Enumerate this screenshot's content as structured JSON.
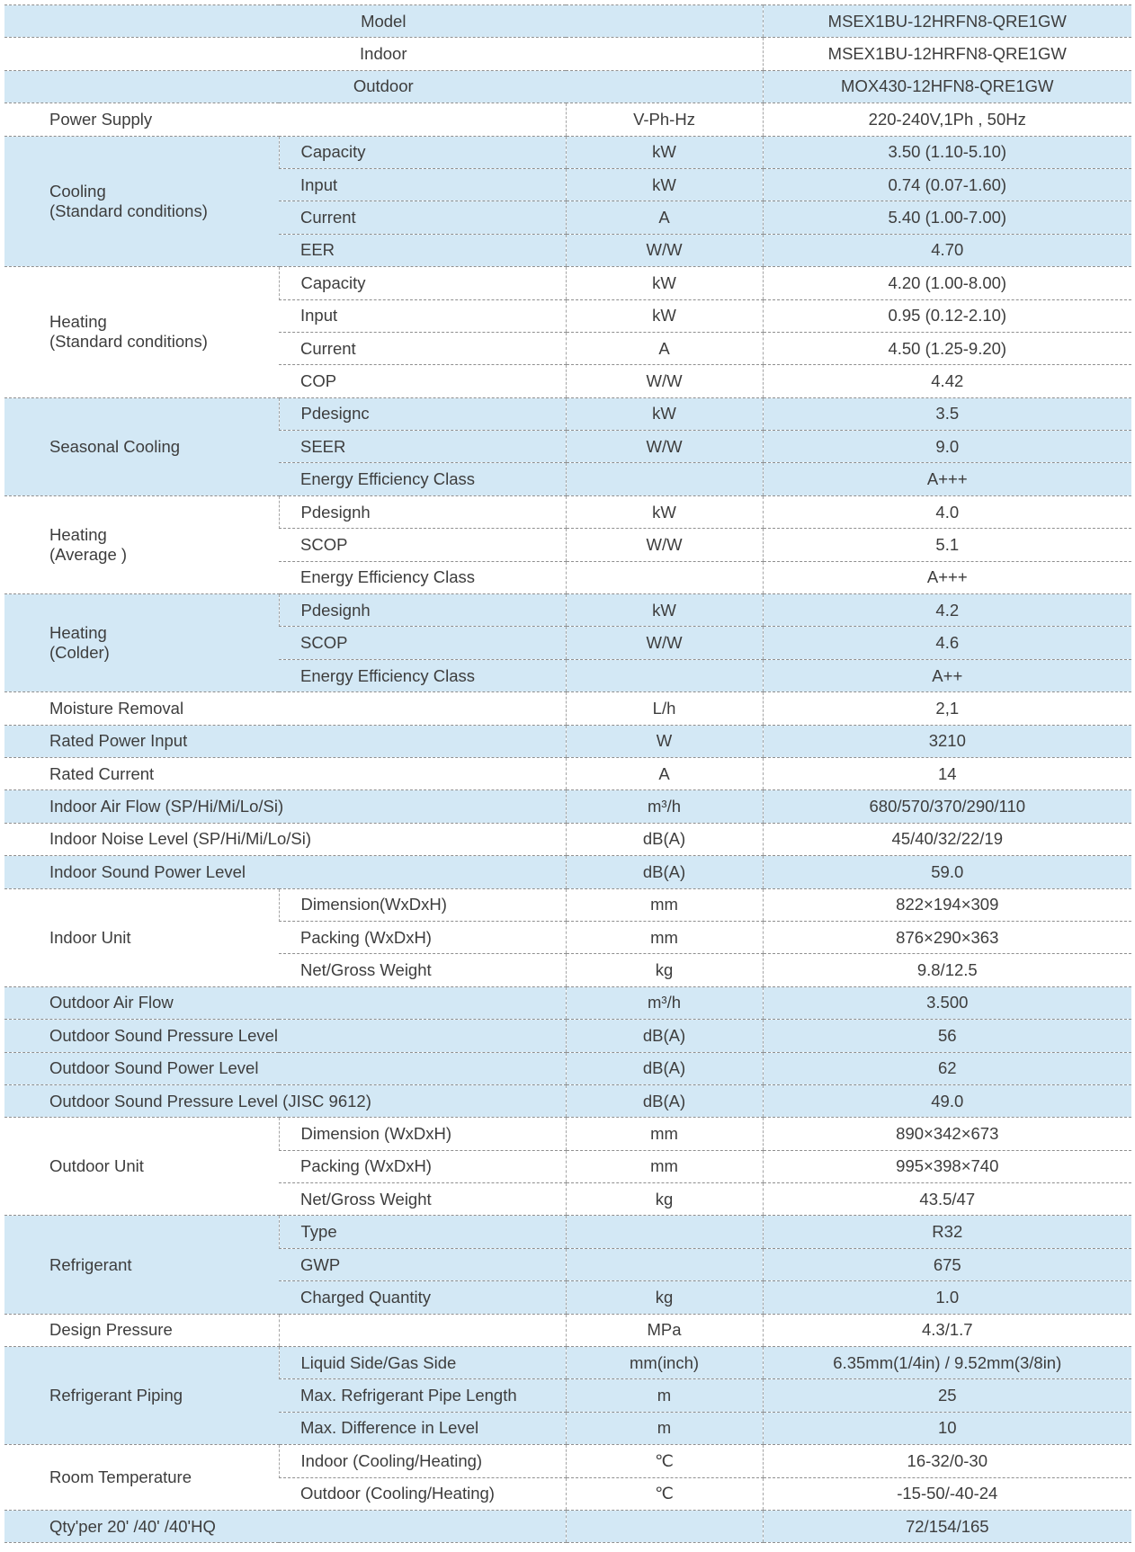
{
  "colors": {
    "shaded_row": "#d3e8f5",
    "text": "#3d3d3d",
    "divider": "#8f8f8f"
  },
  "header_rows": [
    {
      "label": "Model",
      "value": "MSEX1BU-12HRFN8-QRE1GW",
      "shaded": true
    },
    {
      "label": "Indoor",
      "value": "MSEX1BU-12HRFN8-QRE1GW",
      "shaded": false
    },
    {
      "label": "Outdoor",
      "value": "MOX430-12HFN8-QRE1GW",
      "shaded": true
    }
  ],
  "sections": [
    {
      "label": [
        "Power Supply"
      ],
      "unit": "V-Ph-Hz",
      "value": "220-240V,1Ph , 50Hz",
      "shaded": false
    },
    {
      "label": [
        "Cooling",
        "(Standard conditions)"
      ],
      "shaded": true,
      "sub": [
        {
          "label": "Capacity",
          "unit": "kW",
          "value": "3.50  (1.10-5.10)"
        },
        {
          "label": "Input",
          "unit": "kW",
          "value": "0.74  (0.07-1.60)"
        },
        {
          "label": "Current",
          "unit": "A",
          "value": "5.40  (1.00-7.00)"
        },
        {
          "label": "EER",
          "unit": "W/W",
          "value": "4.70"
        }
      ]
    },
    {
      "label": [
        "Heating",
        "(Standard conditions)"
      ],
      "shaded": false,
      "sub": [
        {
          "label": "Capacity",
          "unit": "kW",
          "value": "4.20  (1.00-8.00)"
        },
        {
          "label": "Input",
          "unit": "kW",
          "value": "0.95  (0.12-2.10)"
        },
        {
          "label": "Current",
          "unit": "A",
          "value": "4.50  (1.25-9.20)"
        },
        {
          "label": "COP",
          "unit": "W/W",
          "value": "4.42"
        }
      ]
    },
    {
      "label": [
        "Seasonal Cooling"
      ],
      "shaded": true,
      "sub": [
        {
          "label": "Pdesignc",
          "unit": "kW",
          "value": "3.5"
        },
        {
          "label": "SEER",
          "unit": "W/W",
          "value": "9.0"
        },
        {
          "label": "Energy Efficiency Class",
          "unit": "",
          "value": "A+++"
        }
      ]
    },
    {
      "label": [
        "Heating",
        "(Average )"
      ],
      "shaded": false,
      "sub": [
        {
          "label": "Pdesignh",
          "unit": "kW",
          "value": "4.0"
        },
        {
          "label": "SCOP",
          "unit": "W/W",
          "value": "5.1"
        },
        {
          "label": "Energy Efficiency Class",
          "unit": "",
          "value": "A+++"
        }
      ]
    },
    {
      "label": [
        "Heating",
        "(Colder)"
      ],
      "shaded": true,
      "sub": [
        {
          "label": "Pdesignh",
          "unit": "kW",
          "value": "4.2"
        },
        {
          "label": "SCOP",
          "unit": "W/W",
          "value": "4.6"
        },
        {
          "label": "Energy Efficiency Class",
          "unit": "",
          "value": "A++"
        }
      ]
    },
    {
      "label": [
        "Moisture Removal"
      ],
      "unit": "L/h",
      "value": "2,1",
      "shaded": false
    },
    {
      "label": [
        "Rated Power Input"
      ],
      "unit": "W",
      "value": "3210",
      "shaded": true
    },
    {
      "label": [
        "Rated Current"
      ],
      "unit": "A",
      "value": "14",
      "shaded": false
    },
    {
      "label": [
        "Indoor Air Flow (SP/Hi/Mi/Lo/Si)"
      ],
      "unit": "m³/h",
      "value": "680/570/370/290/110",
      "shaded": true
    },
    {
      "label": [
        "Indoor Noise Level (SP/Hi/Mi/Lo/Si)"
      ],
      "unit": "dB(A)",
      "value": "45/40/32/22/19",
      "shaded": false
    },
    {
      "label": [
        "Indoor Sound Power Level"
      ],
      "unit": "dB(A)",
      "value": "59.0",
      "shaded": true
    },
    {
      "label": [
        "Indoor Unit"
      ],
      "shaded": false,
      "sub": [
        {
          "label": "Dimension(WxDxH)",
          "unit": "mm",
          "value": "822×194×309"
        },
        {
          "label": "Packing   (WxDxH)",
          "unit": "mm",
          "value": "876×290×363"
        },
        {
          "label": "Net/Gross Weight",
          "unit": "kg",
          "value": "9.8/12.5"
        }
      ]
    },
    {
      "label": [
        "Outdoor Air Flow"
      ],
      "unit": "m³/h",
      "value": "3.500",
      "shaded": true
    },
    {
      "label": [
        "Outdoor Sound Pressure Level"
      ],
      "unit": "dB(A)",
      "value": "56",
      "shaded": true
    },
    {
      "label": [
        "Outdoor Sound Power Level"
      ],
      "unit": "dB(A)",
      "value": "62",
      "shaded": true
    },
    {
      "label": [
        "Outdoor Sound Pressure Level       (JISC 9612)"
      ],
      "unit": "dB(A)",
      "value": "49.0",
      "shaded": true
    },
    {
      "label": [
        "Outdoor Unit"
      ],
      "shaded": false,
      "sub": [
        {
          "label": "Dimension (WxDxH)",
          "unit": "mm",
          "value": "890×342×673"
        },
        {
          "label": "Packing (WxDxH)",
          "unit": "mm",
          "value": "995×398×740"
        },
        {
          "label": "Net/Gross Weight",
          "unit": "kg",
          "value": "43.5/47"
        }
      ]
    },
    {
      "label": [
        "Refrigerant"
      ],
      "shaded": true,
      "sub": [
        {
          "label": "Type",
          "unit": "",
          "value": "R32"
        },
        {
          "label": "GWP",
          "unit": "",
          "value": "675"
        },
        {
          "label": "Charged Quantity",
          "unit": "kg",
          "value": "1.0"
        }
      ]
    },
    {
      "label": [
        "Design Pressure"
      ],
      "emptySub": true,
      "unit": "MPa",
      "value": "4.3/1.7",
      "shaded": false
    },
    {
      "label": [
        "Refrigerant Piping"
      ],
      "shaded": true,
      "sub": [
        {
          "label": "Liquid Side/Gas Side",
          "unit": "mm(inch)",
          "value": "6.35mm(1/4in) / 9.52mm(3/8in)"
        },
        {
          "label": "Max. Refrigerant Pipe Length",
          "unit": "m",
          "value": "25"
        },
        {
          "label": "Max. Difference in Level",
          "unit": "m",
          "value": "10"
        }
      ]
    },
    {
      "label": [
        "Room  Temperature"
      ],
      "shaded": false,
      "sub": [
        {
          "label": "Indoor (Cooling/Heating)",
          "unit": "℃",
          "value": "16-32/0-30"
        },
        {
          "label": "Outdoor (Cooling/Heating)",
          "unit": "℃",
          "value": "-15-50/-40-24"
        }
      ]
    },
    {
      "label": [
        "Qty'per 20' /40' /40'HQ"
      ],
      "unit": "",
      "value": "72/154/165",
      "shaded": true
    }
  ]
}
